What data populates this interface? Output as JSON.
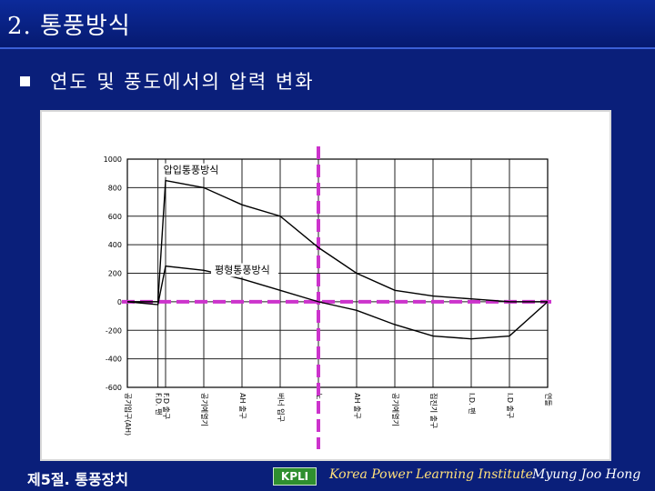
{
  "slide": {
    "title": "2. 통풍방식",
    "subtitle": "연도 및 풍도에서의 압력 변화"
  },
  "footer": {
    "section": "제5절. 통풍장치",
    "logo_text": "KPLI",
    "institute": "Korea Power Learning Institute",
    "author": "Myung Joo Hong"
  },
  "colors": {
    "background": "#0a1f7a",
    "marker_line": "#cc33cc",
    "curve": "#000000"
  },
  "chart_data": {
    "type": "line",
    "y_ticks": [
      "1000",
      "800",
      "600",
      "400",
      "200",
      "0",
      "-200",
      "-400",
      "-600"
    ],
    "ylim": [
      -600,
      1000
    ],
    "categories": [
      "공기입구(AH)",
      "F.D. 팬",
      "F.D 출구",
      "공기예열기",
      "AH 출구",
      "버너 입구",
      "노",
      "AH 출구",
      "공기예열기",
      "집진기 출구",
      "I.D. 팬",
      "I.D 출구",
      "연돌"
    ],
    "x": [
      0,
      0.8,
      1,
      2,
      3,
      4,
      5,
      6,
      7,
      8,
      9,
      10,
      11
    ],
    "series": [
      {
        "name": "압입통풍방식",
        "values": [
          0,
          0,
          850,
          800,
          680,
          600,
          380,
          200,
          80,
          40,
          20,
          0,
          0
        ]
      },
      {
        "name": "평형통풍방식",
        "values": [
          0,
          -20,
          250,
          220,
          160,
          80,
          0,
          -60,
          -160,
          -240,
          -260,
          -240,
          0
        ]
      }
    ],
    "vertical_marker_category": "노",
    "horizontal_marker_value": 0
  }
}
